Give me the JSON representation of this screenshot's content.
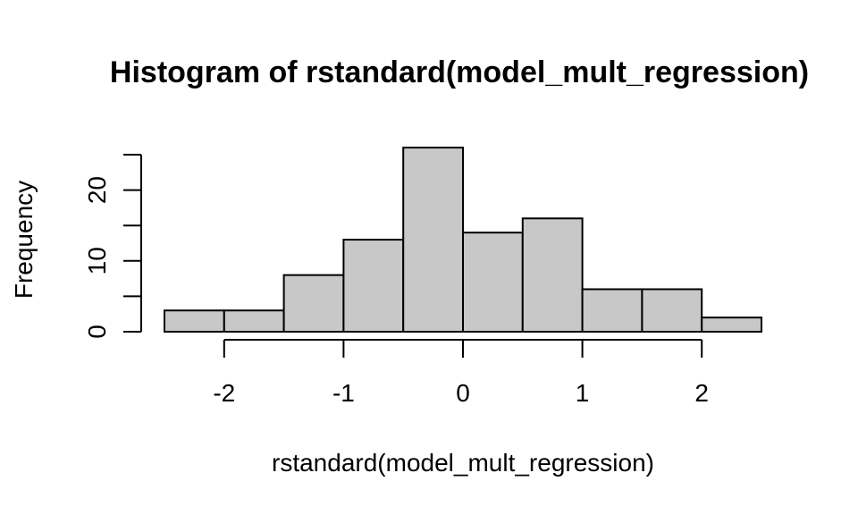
{
  "chart_data": {
    "type": "bar",
    "title": "Histogram of rstandard(model_mult_regression)",
    "xlabel": "rstandard(model_mult_regression)",
    "ylabel": "Frequency",
    "bin_edges": [
      -2.5,
      -2,
      -1.5,
      -1,
      -0.5,
      0,
      0.5,
      1,
      1.5,
      2,
      2.5
    ],
    "values": [
      3,
      3,
      8,
      13,
      26,
      14,
      16,
      6,
      6,
      2
    ],
    "xlim": [
      -2.5,
      2.5
    ],
    "ylim": [
      0,
      25
    ],
    "x_ticks": [
      -2,
      -1,
      0,
      1,
      2
    ],
    "x_tick_labels": [
      "-2",
      "-1",
      "0",
      "1",
      "2"
    ],
    "y_ticks": [
      0,
      5,
      10,
      15,
      20,
      25
    ],
    "y_tick_labels": [
      "0",
      "10",
      "20"
    ],
    "y_labeled_ticks": [
      0,
      10,
      20
    ],
    "colors": {
      "bar_fill": "#c8c8c8",
      "bar_stroke": "#000000"
    },
    "grid": false,
    "legend": "none"
  }
}
